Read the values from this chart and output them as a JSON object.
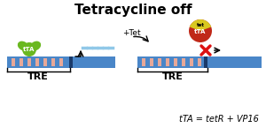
{
  "title": "Tetracycline off",
  "title_fontsize": 11,
  "background_color": "#ffffff",
  "bar_blue": "#4a86c8",
  "bar_stripe_color": "#e8a898",
  "bar_dark": "#1a3a6a",
  "tTA_green": "#6ab820",
  "tTA_yellow": "#d8c820",
  "tTA_red": "#c02818",
  "tTA_text_color": "#ffffff",
  "mRNA_color": "#90c8e8",
  "cross_color": "#dd1111",
  "annotation_text": "tTA = tetR + VP16",
  "annotation_fontsize": 7,
  "tre_label": "TRE",
  "tta_label": "tTA",
  "tet_label": "+Tet",
  "tet_small": "tet"
}
